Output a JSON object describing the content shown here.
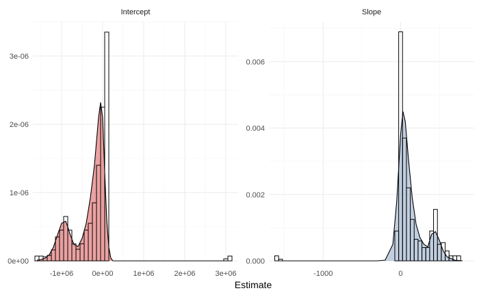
{
  "chart_data": {
    "type": "histogram",
    "xlabel": "Estimate",
    "panels": [
      {
        "title": "Intercept",
        "fill": "#e07070",
        "xlim": [
          -1700000,
          3300000
        ],
        "ylim": [
          0,
          3.5e-06
        ],
        "x_ticks": [
          -1000000,
          0,
          1000000,
          2000000,
          3000000
        ],
        "x_tick_labels": [
          "-1e+06",
          "0e+00",
          "1e+06",
          "2e+06",
          "3e+06"
        ],
        "y_ticks": [
          0,
          1e-06,
          2e-06,
          3e-06
        ],
        "y_tick_labels": [
          "0e+00",
          "1e-06",
          "2e-06",
          "3e-06"
        ],
        "histogram": {
          "x": [
            -1600000,
            -1500000,
            -1400000,
            -1300000,
            -1200000,
            -1100000,
            -1000000,
            -900000,
            -800000,
            -700000,
            -600000,
            -500000,
            -400000,
            -300000,
            -200000,
            -100000,
            0,
            100000,
            3000000,
            3100000
          ],
          "density": [
            7e-08,
            7e-08,
            6e-08,
            8e-08,
            1.6e-07,
            3.5e-07,
            4.5e-07,
            6.5e-07,
            4.5e-07,
            2.5e-07,
            1.7e-07,
            2.5e-07,
            4.5e-07,
            5.5e-07,
            8.5e-07,
            1.4e-06,
            2.25e-06,
            3.35e-06,
            3e-08,
            7e-08
          ]
        },
        "density_curve": {
          "x": [
            -1600000,
            -1500000,
            -1400000,
            -1300000,
            -1200000,
            -1100000,
            -1000000,
            -900000,
            -850000,
            -800000,
            -700000,
            -600000,
            -500000,
            -400000,
            -300000,
            -200000,
            -100000,
            -50000,
            0,
            50000,
            100000,
            150000,
            200000,
            250000,
            3000000
          ],
          "y": [
            1e-08,
            2e-08,
            4e-08,
            9e-08,
            2e-07,
            3.8e-07,
            5.5e-07,
            5.8e-07,
            5e-07,
            4e-07,
            2.4e-07,
            2.1e-07,
            3.3e-07,
            5.5e-07,
            9.2e-07,
            1.4e-06,
            2.1e-06,
            2.32e-06,
            2.1e-06,
            1.3e-06,
            6e-07,
            2e-07,
            4e-08,
            0.0,
            0.0
          ]
        }
      },
      {
        "title": "Slope",
        "fill": "#9fb6cf",
        "xlim": [
          -1700,
          950
        ],
        "ylim": [
          0,
          0.0072
        ],
        "x_ticks": [
          -1000,
          0
        ],
        "x_tick_labels": [
          "-1000",
          "0"
        ],
        "y_ticks": [
          0,
          0.002,
          0.004,
          0.006
        ],
        "y_tick_labels": [
          "0.000",
          "0.002",
          "0.004",
          "0.006"
        ],
        "histogram": {
          "x": [
            -1600,
            -1550,
            -50,
            0,
            50,
            100,
            150,
            200,
            250,
            300,
            350,
            400,
            450,
            500,
            550,
            600,
            650,
            700,
            750
          ],
          "density": [
            0.00015,
            5e-05,
            0.0009,
            0.0069,
            0.0037,
            0.0022,
            0.00125,
            0.00065,
            0.0006,
            0.0004,
            0.0004,
            0.0009,
            0.00155,
            0.0005,
            0.00055,
            0.0003,
            0.00015,
            0.00015,
            0.00015
          ]
        },
        "density_curve": {
          "x": [
            -1600,
            -1200,
            -300,
            -200,
            -100,
            -50,
            0,
            30,
            60,
            100,
            150,
            200,
            250,
            300,
            350,
            400,
            450,
            500,
            550,
            600,
            700,
            800
          ],
          "y": [
            0.0,
            0.0,
            0.0,
            2e-05,
            0.0005,
            0.0018,
            0.0038,
            0.0045,
            0.0042,
            0.0031,
            0.0019,
            0.0011,
            0.0007,
            0.0005,
            0.00042,
            0.0008,
            0.00088,
            0.00062,
            0.0003,
            0.00012,
            2e-05,
            0.0
          ]
        }
      }
    ]
  }
}
